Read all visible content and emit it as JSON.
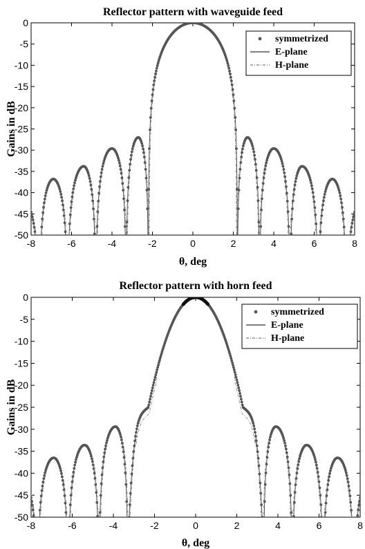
{
  "chart_data": [
    {
      "type": "line",
      "title": "Reflector pattern with waveguide feed",
      "xlabel": "θ, deg",
      "ylabel": "Gains in dB",
      "xlim": [
        -8,
        8
      ],
      "ylim": [
        -50,
        0
      ],
      "xticks": [
        "-8",
        "-6",
        "-4",
        "-2",
        "0",
        "2",
        "4",
        "6",
        "8"
      ],
      "yticks": [
        "0",
        "-5",
        "-10",
        "-15",
        "-20",
        "-25",
        "-30",
        "-35",
        "-40",
        "-45",
        "-50"
      ],
      "grid": false,
      "legend_position": "top-right",
      "series": [
        {
          "name": "symmetrized",
          "style": "dots"
        },
        {
          "name": "E-plane",
          "style": "solid"
        },
        {
          "name": "H-plane",
          "style": "dashdot"
        }
      ],
      "main_lobe": {
        "center": 0,
        "peak": 0,
        "first_null": 2.2
      },
      "sidelobes": [
        {
          "x": 2.7,
          "y": -27
        },
        {
          "x": 4.0,
          "y": -29.6
        },
        {
          "x": 5.4,
          "y": -33.8
        },
        {
          "x": 6.9,
          "y": -36.8
        }
      ],
      "nulls": [
        2.2,
        3.3,
        4.8,
        6.2,
        7.6
      ],
      "edge": {
        "x": 8,
        "y": -40.5
      }
    },
    {
      "type": "line",
      "title": "Reflector pattern with horn feed",
      "xlabel": "θ, deg",
      "ylabel": "Gains in dB",
      "xlim": [
        -8,
        8
      ],
      "ylim": [
        -50,
        0
      ],
      "xticks": [
        "-8",
        "-6",
        "-4",
        "-2",
        "0",
        "2",
        "4",
        "6",
        "8"
      ],
      "yticks": [
        "0",
        "-5",
        "-10",
        "-15",
        "-20",
        "-25",
        "-30",
        "-35",
        "-40",
        "-45",
        "-50"
      ],
      "grid": false,
      "legend_position": "top-right",
      "series": [
        {
          "name": "symmetrized",
          "style": "dots"
        },
        {
          "name": "E-plane",
          "style": "solid"
        },
        {
          "name": "H-plane",
          "style": "dashdot"
        }
      ],
      "main_lobe": {
        "center": 0,
        "peak": 0,
        "shoulder": {
          "x": 2.3,
          "y": -25
        }
      },
      "sidelobes": [
        {
          "x": 3.9,
          "y": -29.4
        },
        {
          "x": 5.4,
          "y": -33.6
        },
        {
          "x": 6.9,
          "y": -36.5
        }
      ],
      "nulls": [
        3.3,
        4.7,
        6.2,
        7.7
      ],
      "edge": {
        "x": 8,
        "y": -40.5
      }
    }
  ]
}
